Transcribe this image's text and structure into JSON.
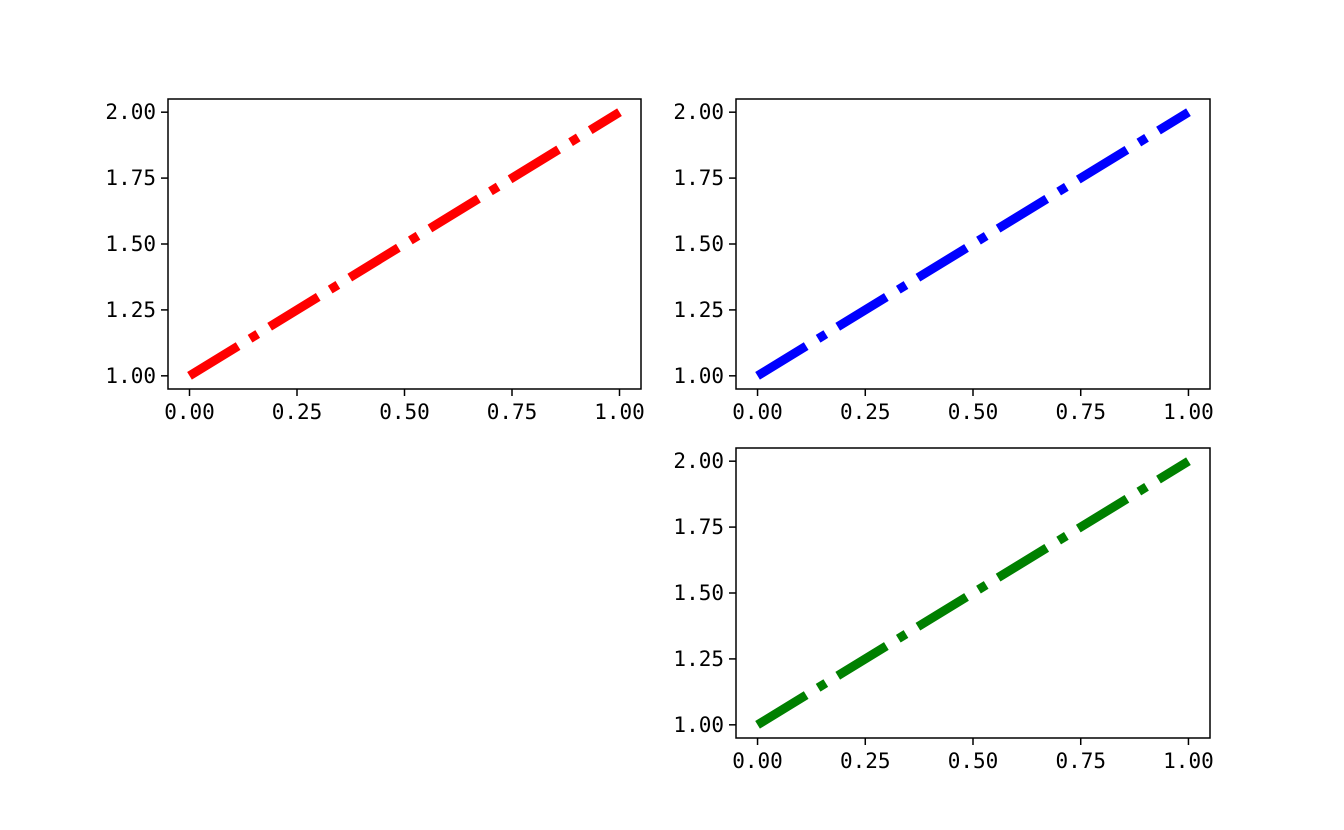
{
  "chart_data": [
    {
      "type": "line",
      "series": [
        {
          "x": [
            0,
            1
          ],
          "y": [
            1,
            2
          ],
          "color": "#ff0000",
          "linestyle": "dashdot"
        }
      ],
      "xlim": [
        -0.05,
        1.05
      ],
      "ylim": [
        0.95,
        2.05
      ],
      "xticks": [
        "0.00",
        "0.25",
        "0.50",
        "0.75",
        "1.00"
      ],
      "yticks": [
        "1.00",
        "1.25",
        "1.50",
        "1.75",
        "2.00"
      ],
      "grid": false
    },
    {
      "type": "line",
      "series": [
        {
          "x": [
            0,
            1
          ],
          "y": [
            1,
            2
          ],
          "color": "#0000ff",
          "linestyle": "dashdot"
        }
      ],
      "xlim": [
        -0.05,
        1.05
      ],
      "ylim": [
        0.95,
        2.05
      ],
      "xticks": [
        "0.00",
        "0.25",
        "0.50",
        "0.75",
        "1.00"
      ],
      "yticks": [
        "1.00",
        "1.25",
        "1.50",
        "1.75",
        "2.00"
      ],
      "grid": false
    },
    {
      "type": "line",
      "series": [
        {
          "x": [
            0,
            1
          ],
          "y": [
            1,
            2
          ],
          "color": "#008000",
          "linestyle": "dashdot"
        }
      ],
      "xlim": [
        -0.05,
        1.05
      ],
      "ylim": [
        0.95,
        2.05
      ],
      "xticks": [
        "0.00",
        "0.25",
        "0.50",
        "0.75",
        "1.00"
      ],
      "yticks": [
        "1.00",
        "1.25",
        "1.50",
        "1.75",
        "2.00"
      ],
      "grid": false
    }
  ]
}
